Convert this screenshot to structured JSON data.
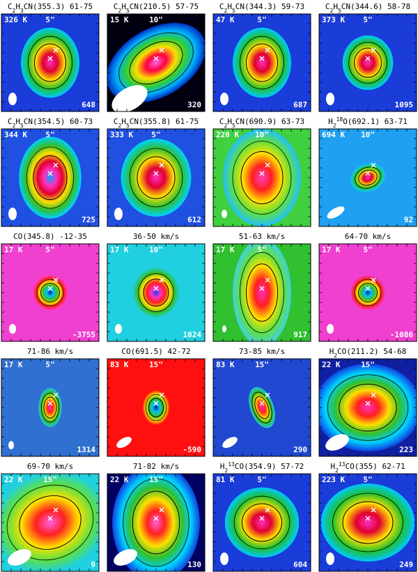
{
  "panels": [
    {
      "title": [
        {
          "text": "C"
        },
        {
          "text": "2",
          "pos": "sub"
        },
        {
          "text": "H"
        },
        {
          "text": "3",
          "pos": "sub"
        },
        {
          "text": "CN(355.3) 61-75"
        }
      ],
      "temperature": "326 K",
      "scale": "5\"",
      "value": "648"
    },
    {
      "title": [
        {
          "text": "C"
        },
        {
          "text": "2",
          "pos": "sub"
        },
        {
          "text": "H"
        },
        {
          "text": "5",
          "pos": "sub"
        },
        {
          "text": "CN(210.5) 57-75"
        }
      ],
      "temperature": "15 K",
      "scale": "10\"",
      "value": "320"
    },
    {
      "title": [
        {
          "text": "C"
        },
        {
          "text": "2",
          "pos": "sub"
        },
        {
          "text": "H"
        },
        {
          "text": "5",
          "pos": "sub"
        },
        {
          "text": "CN(344.3) 59-73"
        }
      ],
      "temperature": "47 K",
      "scale": "5\"",
      "value": "687"
    },
    {
      "title": [
        {
          "text": "C"
        },
        {
          "text": "2",
          "pos": "sub"
        },
        {
          "text": "H"
        },
        {
          "text": "5",
          "pos": "sub"
        },
        {
          "text": "CN(344.6) 58-78"
        }
      ],
      "temperature": "373 K",
      "scale": "5\"",
      "value": "1095"
    },
    {
      "title": [
        {
          "text": "C"
        },
        {
          "text": "2",
          "pos": "sub"
        },
        {
          "text": "H"
        },
        {
          "text": "5",
          "pos": "sub"
        },
        {
          "text": "CN(354.5) 60-73"
        }
      ],
      "temperature": "344 K",
      "scale": "5\"",
      "value": "725"
    },
    {
      "title": [
        {
          "text": "C"
        },
        {
          "text": "2",
          "pos": "sub"
        },
        {
          "text": "H"
        },
        {
          "text": "5",
          "pos": "sub"
        },
        {
          "text": "CN(355.8) 61-75"
        }
      ],
      "temperature": "333 K",
      "scale": "5\"",
      "value": "612"
    },
    {
      "title": [
        {
          "text": "C"
        },
        {
          "text": "2",
          "pos": "sub"
        },
        {
          "text": "H"
        },
        {
          "text": "5",
          "pos": "sub"
        },
        {
          "text": "CN(690.9) 63-73"
        }
      ],
      "temperature": "220 K",
      "scale": "10\""
    },
    {
      "title": [
        {
          "text": "H"
        },
        {
          "text": "2",
          "pos": "sub"
        },
        {
          "text": "18",
          "pos": "sup"
        },
        {
          "text": "O(692.1) 63-71"
        }
      ],
      "temperature": "694 K",
      "scale": "10\"",
      "value": "92"
    },
    {
      "title": [
        {
          "text": "CO(345.8) -12-35"
        }
      ],
      "temperature": "17 K",
      "scale": "5\"",
      "value": "-3755"
    },
    {
      "title": [
        {
          "text": "36-50 km/s"
        }
      ],
      "temperature": "17 K",
      "scale": "10\"",
      "value": "1024"
    },
    {
      "title": [
        {
          "text": "51-63 km/s"
        }
      ],
      "temperature": "17 K",
      "scale": "5\"",
      "value": "917"
    },
    {
      "title": [
        {
          "text": "64-70 km/s"
        }
      ],
      "temperature": "17 K",
      "scale": "5\"",
      "value": "-1086"
    },
    {
      "title": [
        {
          "text": "71-86 km/s"
        }
      ],
      "temperature": "17 K",
      "scale": "5\"",
      "value": "1314"
    },
    {
      "title": [
        {
          "text": "CO(691.5) 42-72"
        }
      ],
      "temperature": "83 K",
      "scale": "15\"",
      "value": "-590"
    },
    {
      "title": [
        {
          "text": "73-85 km/s"
        }
      ],
      "temperature": "83 K",
      "scale": "15\"",
      "value": "290"
    },
    {
      "title": [
        {
          "text": "H"
        },
        {
          "text": "2",
          "pos": "sub"
        },
        {
          "text": "CO(211.2) 54-68"
        }
      ],
      "temperature": "22 K",
      "scale": "15\"",
      "value": "223"
    },
    {
      "title": [
        {
          "text": "69-70 km/s"
        }
      ],
      "temperature": "22 K",
      "scale": "15\"",
      "value": "9"
    },
    {
      "title": [
        {
          "text": "71-82 km/s"
        }
      ],
      "temperature": "22 K",
      "scale": "15\"",
      "value": "130"
    },
    {
      "title": [
        {
          "text": "H"
        },
        {
          "text": "2",
          "pos": "sub"
        },
        {
          "text": "13",
          "pos": "sup"
        },
        {
          "text": "CO(354.9) 57-72"
        }
      ],
      "temperature": "81 K",
      "scale": "5\"",
      "value": "604"
    },
    {
      "title": [
        {
          "text": "H"
        },
        {
          "text": "2",
          "pos": "sub"
        },
        {
          "text": "13",
          "pos": "sup"
        },
        {
          "text": "CO(355) 62-71"
        }
      ],
      "temperature": "223 K",
      "scale": "5\"",
      "value": "249"
    }
  ]
}
